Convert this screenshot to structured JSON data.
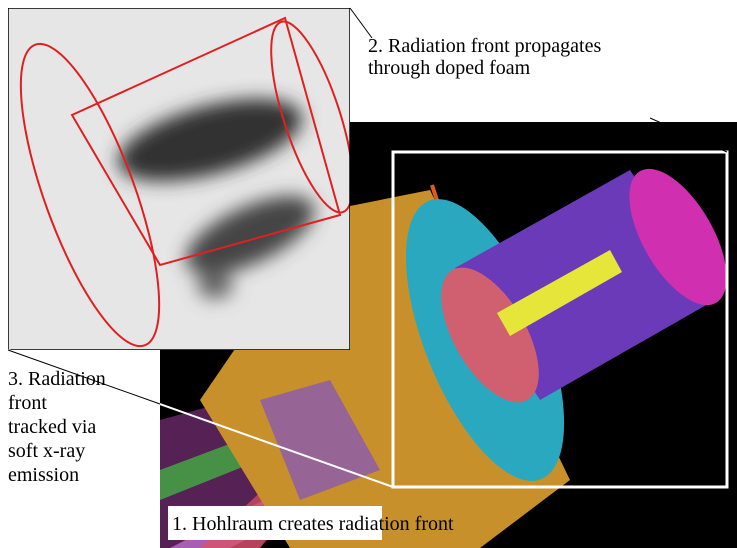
{
  "labels": [
    {
      "lines": [
        "2. Radiation front propagates",
        "through doped foam"
      ]
    },
    {
      "lines": [
        "3. Radiation",
        "front",
        "tracked via",
        "soft x-ray",
        "emission"
      ]
    },
    {
      "lines": [
        "1. Hohlraum creates radiation front"
      ]
    }
  ]
}
